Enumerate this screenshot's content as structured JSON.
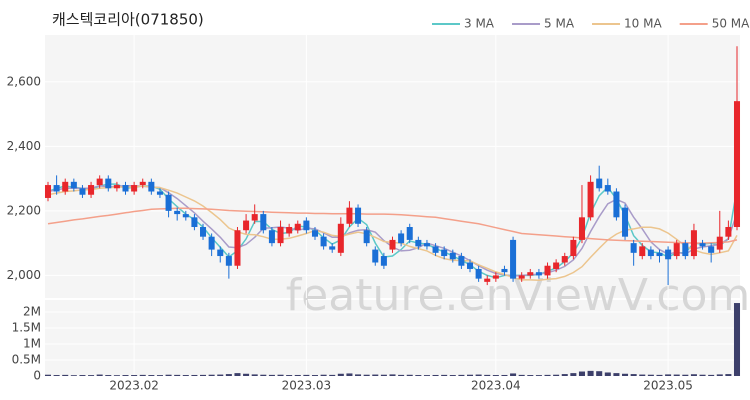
{
  "chart_data": {
    "type": "candlestick",
    "title": "캐스텍코리아(071850)",
    "watermark": "feature.enViewV.com",
    "up_color": "#e8262b",
    "down_color": "#1a6fd6",
    "grid": true,
    "categories": [
      null,
      null,
      null,
      null,
      null,
      null,
      null,
      null,
      null,
      null,
      "2023.02",
      null,
      null,
      null,
      null,
      null,
      null,
      null,
      null,
      null,
      null,
      null,
      null,
      null,
      null,
      null,
      null,
      null,
      null,
      null,
      "2023.03",
      null,
      null,
      null,
      null,
      null,
      null,
      null,
      null,
      null,
      null,
      null,
      null,
      null,
      null,
      null,
      null,
      null,
      null,
      null,
      null,
      null,
      "2023.04",
      null,
      null,
      null,
      null,
      null,
      null,
      null,
      null,
      null,
      null,
      null,
      null,
      null,
      null,
      null,
      null,
      null,
      null,
      null,
      "2023.05",
      null,
      null,
      null,
      null,
      null,
      null,
      null,
      null
    ],
    "open": [
      2240,
      2280,
      2260,
      2290,
      2270,
      2250,
      2280,
      2300,
      2270,
      2280,
      2260,
      2280,
      2290,
      2260,
      2250,
      2200,
      2190,
      2180,
      2150,
      2120,
      2080,
      2060,
      2030,
      2140,
      2170,
      2190,
      2140,
      2100,
      2130,
      2140,
      2170,
      2140,
      2120,
      2090,
      2070,
      2160,
      2210,
      2140,
      2080,
      2060,
      2080,
      2130,
      2150,
      2110,
      2100,
      2090,
      2080,
      2070,
      2060,
      2040,
      2020,
      1980,
      1990,
      2020,
      2110,
      1990,
      2000,
      2010,
      2000,
      2020,
      2040,
      2060,
      2110,
      2180,
      2300,
      2280,
      2260,
      2210,
      2100,
      2060,
      2080,
      2070,
      2080,
      2060,
      2100,
      2060,
      2100,
      2090,
      2080,
      2120,
      2150
    ],
    "high": [
      2290,
      2310,
      2300,
      2300,
      2280,
      2290,
      2310,
      2310,
      2290,
      2290,
      2290,
      2300,
      2300,
      2270,
      2260,
      2210,
      2200,
      2190,
      2160,
      2130,
      2090,
      2070,
      2150,
      2190,
      2220,
      2200,
      2150,
      2170,
      2160,
      2170,
      2180,
      2150,
      2130,
      2100,
      2180,
      2230,
      2220,
      2150,
      2090,
      2070,
      2120,
      2140,
      2160,
      2120,
      2110,
      2100,
      2090,
      2080,
      2070,
      2050,
      2030,
      2000,
      2010,
      2030,
      2120,
      2010,
      2020,
      2020,
      2040,
      2050,
      2070,
      2120,
      2280,
      2310,
      2340,
      2300,
      2270,
      2220,
      2110,
      2100,
      2090,
      2080,
      2090,
      2110,
      2110,
      2160,
      2110,
      2100,
      2200,
      2170,
      2710
    ],
    "low": [
      2230,
      2250,
      2250,
      2260,
      2240,
      2240,
      2270,
      2260,
      2260,
      2250,
      2250,
      2270,
      2250,
      2240,
      2180,
      2170,
      2170,
      2140,
      2110,
      2060,
      2040,
      1990,
      2020,
      2130,
      2160,
      2130,
      2090,
      2090,
      2120,
      2130,
      2130,
      2110,
      2080,
      2070,
      2060,
      2150,
      2150,
      2090,
      2030,
      2020,
      2070,
      2090,
      2100,
      2080,
      2080,
      2060,
      2050,
      2040,
      2020,
      2010,
      1980,
      1970,
      1980,
      2000,
      1980,
      1980,
      1990,
      1990,
      1990,
      2010,
      2030,
      2050,
      2100,
      2170,
      2260,
      2250,
      2170,
      2110,
      2030,
      2050,
      2050,
      2040,
      1970,
      2050,
      2050,
      2050,
      2080,
      2040,
      2070,
      2110,
      2140
    ],
    "close": [
      2280,
      2260,
      2290,
      2270,
      2250,
      2280,
      2300,
      2270,
      2280,
      2260,
      2280,
      2290,
      2260,
      2250,
      2200,
      2190,
      2180,
      2150,
      2120,
      2080,
      2060,
      2030,
      2140,
      2170,
      2190,
      2140,
      2100,
      2150,
      2150,
      2160,
      2140,
      2120,
      2090,
      2080,
      2160,
      2210,
      2160,
      2100,
      2040,
      2030,
      2110,
      2100,
      2110,
      2090,
      2090,
      2070,
      2060,
      2050,
      2030,
      2020,
      1990,
      1990,
      2000,
      2010,
      1990,
      2000,
      2010,
      2000,
      2030,
      2040,
      2060,
      2110,
      2180,
      2290,
      2270,
      2260,
      2180,
      2120,
      2070,
      2090,
      2060,
      2060,
      2050,
      2100,
      2060,
      2140,
      2090,
      2070,
      2120,
      2150,
      2540
    ],
    "ylim": [
      1930,
      2745
    ],
    "yticks": [
      {
        "value": 2000,
        "label": "2,000"
      },
      {
        "value": 2200,
        "label": "2,200"
      },
      {
        "value": 2400,
        "label": "2,400"
      },
      {
        "value": 2600,
        "label": "2,600"
      }
    ],
    "series": [
      {
        "name": "3 MA",
        "color": "#5cc8c8",
        "values": [
          2260,
          2270,
          2277,
          2273,
          2270,
          2267,
          2277,
          2283,
          2283,
          2270,
          2273,
          2277,
          2277,
          2267,
          2237,
          2213,
          2190,
          2173,
          2150,
          2117,
          2087,
          2057,
          2077,
          2113,
          2167,
          2167,
          2143,
          2130,
          2133,
          2153,
          2150,
          2140,
          2117,
          2097,
          2110,
          2150,
          2177,
          2157,
          2100,
          2057,
          2060,
          2080,
          2107,
          2100,
          2097,
          2083,
          2073,
          2060,
          2047,
          2033,
          2013,
          2000,
          1993,
          2000,
          2000,
          2000,
          2000,
          2003,
          2013,
          2023,
          2043,
          2070,
          2117,
          2193,
          2247,
          2273,
          2237,
          2187,
          2123,
          2093,
          2073,
          2070,
          2057,
          2070,
          2070,
          2100,
          2097,
          2100,
          2093,
          2113,
          2270
        ]
      },
      {
        "name": "5 MA",
        "color": "#a99cc9",
        "values": [
          2260,
          2265,
          2270,
          2270,
          2270,
          2270,
          2278,
          2274,
          2276,
          2278,
          2278,
          2276,
          2274,
          2272,
          2256,
          2238,
          2216,
          2194,
          2168,
          2144,
          2118,
          2088,
          2086,
          2096,
          2118,
          2146,
          2148,
          2150,
          2146,
          2140,
          2146,
          2144,
          2132,
          2118,
          2118,
          2132,
          2140,
          2142,
          2134,
          2108,
          2088,
          2076,
          2078,
          2086,
          2100,
          2092,
          2084,
          2072,
          2060,
          2046,
          2030,
          2016,
          2006,
          2002,
          1998,
          2000,
          2002,
          2004,
          2008,
          2016,
          2028,
          2048,
          2084,
          2136,
          2182,
          2222,
          2236,
          2224,
          2180,
          2144,
          2104,
          2080,
          2066,
          2072,
          2066,
          2082,
          2088,
          2092,
          2096,
          2114,
          2194
        ]
      },
      {
        "name": "10 MA",
        "color": "#ecc58e",
        "values": [
          2250,
          2255,
          2260,
          2262,
          2265,
          2266,
          2270,
          2272,
          2273,
          2274,
          2274,
          2277,
          2274,
          2272,
          2264,
          2255,
          2243,
          2231,
          2215,
          2195,
          2173,
          2147,
          2135,
          2127,
          2126,
          2120,
          2112,
          2112,
          2115,
          2122,
          2130,
          2139,
          2134,
          2124,
          2121,
          2128,
          2134,
          2129,
          2118,
          2105,
          2102,
          2100,
          2090,
          2083,
          2076,
          2062,
          2052,
          2047,
          2046,
          2045,
          2033,
          2022,
          2011,
          2003,
          1993,
          1986,
          1986,
          1985,
          1988,
          1990,
          1997,
          2009,
          2027,
          2056,
          2084,
          2110,
          2128,
          2140,
          2144,
          2149,
          2149,
          2144,
          2131,
          2112,
          2091,
          2079,
          2070,
          2065,
          2070,
          2076,
          2124
        ]
      },
      {
        "name": "50 MA",
        "color": "#f4a08a",
        "values": [
          2160,
          2164,
          2168,
          2172,
          2175,
          2179,
          2183,
          2186,
          2190,
          2194,
          2198,
          2201,
          2205,
          2206,
          2207,
          2208,
          2208,
          2207,
          2206,
          2205,
          2203,
          2201,
          2200,
          2199,
          2198,
          2197,
          2196,
          2195,
          2194,
          2193,
          2193,
          2192,
          2192,
          2191,
          2191,
          2191,
          2191,
          2190,
          2190,
          2190,
          2189,
          2188,
          2186,
          2184,
          2182,
          2180,
          2176,
          2172,
          2168,
          2164,
          2160,
          2154,
          2148,
          2142,
          2136,
          2130,
          2128,
          2126,
          2124,
          2122,
          2120,
          2118,
          2116,
          2114,
          2112,
          2110,
          2109,
          2108,
          2107,
          2106,
          2105,
          2104,
          2103,
          2102,
          2101,
          2100,
          2100,
          2101,
          2102,
          2104,
          2110
        ]
      }
    ],
    "volume": {
      "color": "#3c3f6a",
      "ylim": [
        0,
        2375000
      ],
      "yticks": [
        0,
        {
          "value": 500000,
          "label": "0.5M"
        },
        {
          "value": 1000000,
          "label": "1M"
        },
        {
          "value": 1500000,
          "label": "1.5M"
        },
        {
          "value": 2000000,
          "label": "2M"
        }
      ],
      "values": [
        40000,
        30000,
        35000,
        25000,
        30000,
        28000,
        45000,
        30000,
        25000,
        30000,
        30000,
        35000,
        30000,
        28000,
        40000,
        35000,
        30000,
        32000,
        35000,
        40000,
        45000,
        60000,
        90000,
        70000,
        50000,
        40000,
        35000,
        40000,
        30000,
        32000,
        35000,
        30000,
        40000,
        35000,
        70000,
        80000,
        50000,
        40000,
        45000,
        40000,
        50000,
        35000,
        38000,
        30000,
        28000,
        32000,
        35000,
        30000,
        35000,
        40000,
        45000,
        35000,
        30000,
        32000,
        80000,
        35000,
        30000,
        28000,
        35000,
        40000,
        60000,
        90000,
        140000,
        160000,
        150000,
        110000,
        90000,
        70000,
        60000,
        45000,
        40000,
        35000,
        50000,
        45000,
        40000,
        55000,
        40000,
        35000,
        50000,
        60000,
        2280000
      ]
    }
  }
}
